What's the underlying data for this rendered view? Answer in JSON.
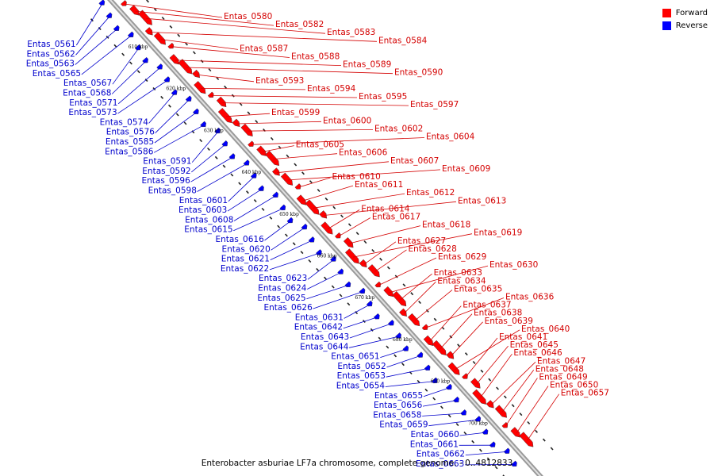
{
  "caption": "Enterobacter asburiae LF7a chromosome, complete genome. - 0..4812833",
  "legend": [
    {
      "label": "Forward",
      "color": "#ff0000"
    },
    {
      "label": "Reverse",
      "color": "#0000ff"
    }
  ],
  "colors": {
    "forward": "#ff0000",
    "reverse": "#0000ff",
    "forward_label": "#d40000",
    "reverse_label": "#0000cc",
    "backbone": "#999999"
  },
  "ticks": [
    "610 kbp",
    "620 kbp",
    "630 kbp",
    "640 kbp",
    "650 kbp",
    "660 kbp",
    "670 kbp",
    "680 kbp",
    "690 kbp",
    "700 kbp"
  ],
  "forward_genes": [
    "Entas_0580",
    "Entas_0582",
    "Entas_0583",
    "Entas_0584",
    "Entas_0587",
    "Entas_0588",
    "Entas_0589",
    "Entas_0590",
    "Entas_0593",
    "Entas_0594",
    "Entas_0595",
    "Entas_0597",
    "Entas_0599",
    "Entas_0600",
    "Entas_0602",
    "Entas_0604",
    "Entas_0605",
    "Entas_0606",
    "Entas_0607",
    "Entas_0609",
    "Entas_0610",
    "Entas_0611",
    "Entas_0612",
    "Entas_0613",
    "Entas_0614",
    "Entas_0617",
    "Entas_0618",
    "Entas_0619",
    "Entas_0627",
    "Entas_0628",
    "Entas_0629",
    "Entas_0630",
    "Entas_0633",
    "Entas_0634",
    "Entas_0635",
    "Entas_0636",
    "Entas_0637",
    "Entas_0638",
    "Entas_0639",
    "Entas_0640",
    "Entas_0641",
    "Entas_0645",
    "Entas_0646",
    "Entas_0647",
    "Entas_0648",
    "Entas_0649",
    "Entas_0650",
    "Entas_0657"
  ],
  "reverse_genes": [
    "Entas_0561",
    "Entas_0562",
    "Entas_0563",
    "Entas_0565",
    "Entas_0567",
    "Entas_0568",
    "Entas_0571",
    "Entas_0573",
    "Entas_0574",
    "Entas_0576",
    "Entas_0585",
    "Entas_0586",
    "Entas_0591",
    "Entas_0592",
    "Entas_0596",
    "Entas_0598",
    "Entas_0601",
    "Entas_0603",
    "Entas_0608",
    "Entas_0615",
    "Entas_0616",
    "Entas_0620",
    "Entas_0621",
    "Entas_0622",
    "Entas_0623",
    "Entas_0624",
    "Entas_0625",
    "Entas_0626",
    "Entas_0631",
    "Entas_0642",
    "Entas_0643",
    "Entas_0644",
    "Entas_0651",
    "Entas_0652",
    "Entas_0653",
    "Entas_0654",
    "Entas_0655",
    "Entas_0656",
    "Entas_0658",
    "Entas_0659",
    "Entas_0660",
    "Entas_0661",
    "Entas_0662",
    "Entas_0663"
  ]
}
